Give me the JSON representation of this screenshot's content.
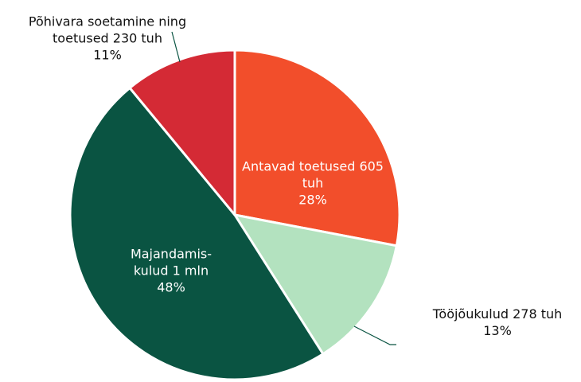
{
  "chart_data": {
    "type": "pie",
    "categories": [
      "Antavad toetused 605 tuh",
      "Tööjõukulud 278 tuh",
      "Majandamis-kulud 1 mln",
      "Põhivara soetamine ning toetused 230 tuh"
    ],
    "values": [
      28,
      13,
      48,
      11
    ],
    "value_labels": [
      "28%",
      "13%",
      "48%",
      "11%"
    ],
    "colors": [
      "#f24e2b",
      "#b3e2bf",
      "#0a5442",
      "#d42a35"
    ]
  }
}
